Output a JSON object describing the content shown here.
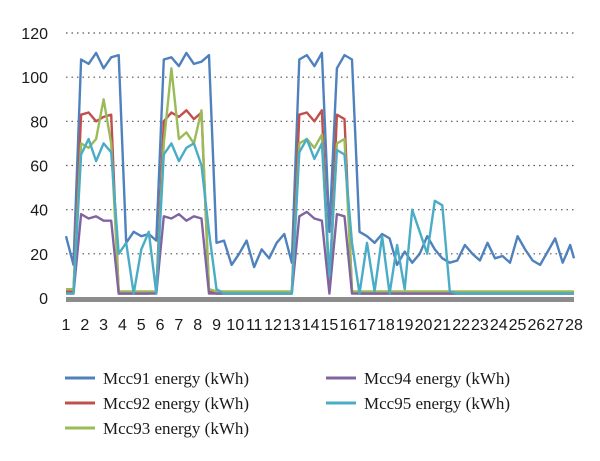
{
  "chart_data": {
    "type": "line",
    "title": "",
    "xlabel": "",
    "ylabel": "",
    "ylim": [
      0,
      120
    ],
    "yticks": [
      "0",
      "20",
      "40",
      "60",
      "80",
      "100",
      "120"
    ],
    "xlim": [
      1,
      28
    ],
    "xtick_labels": [
      "1",
      "2",
      "3",
      "4",
      "5",
      "6",
      "7",
      "8",
      "9",
      "10",
      "11",
      "12",
      "13",
      "14",
      "15",
      "16",
      "17",
      "18",
      "19",
      "20",
      "21",
      "22",
      "23",
      "24",
      "25",
      "26",
      "27",
      "28"
    ],
    "grid": "horizontal dotted",
    "legend_position": "bottom",
    "x": [
      1.0,
      1.4,
      1.8,
      2.2,
      2.6,
      3.0,
      3.4,
      3.8,
      4.2,
      4.6,
      5.0,
      5.4,
      5.8,
      6.2,
      6.6,
      7.0,
      7.4,
      7.8,
      8.2,
      8.6,
      9.0,
      9.4,
      9.8,
      10.2,
      10.6,
      11.0,
      11.4,
      11.8,
      12.2,
      12.6,
      13.0,
      13.4,
      13.8,
      14.2,
      14.6,
      15.0,
      15.4,
      15.8,
      16.2,
      16.6,
      17.0,
      17.4,
      17.8,
      18.2,
      18.6,
      19.0,
      19.4,
      19.8,
      20.2,
      20.6,
      21.0,
      21.4,
      21.8,
      22.2,
      22.6,
      23.0,
      23.4,
      23.8,
      24.2,
      24.6,
      25.0,
      25.4,
      25.8,
      26.2,
      26.6,
      27.0,
      27.4,
      27.8,
      28.0
    ],
    "series": [
      {
        "name": "Mcc91 energy (kWh)",
        "color": "#4f81bd",
        "values": [
          28,
          15,
          108,
          106,
          111,
          104,
          109,
          110,
          25,
          30,
          28,
          29,
          26,
          108,
          109,
          105,
          111,
          106,
          107,
          110,
          25,
          26,
          15,
          20,
          26,
          14,
          22,
          18,
          25,
          29,
          16,
          108,
          110,
          105,
          111,
          30,
          104,
          110,
          108,
          30,
          28,
          25,
          29,
          27,
          15,
          21,
          16,
          20,
          28,
          22,
          18,
          16,
          17,
          24,
          20,
          17,
          25,
          18,
          19,
          16,
          28,
          22,
          17,
          15,
          21,
          27,
          16,
          24,
          18
        ]
      },
      {
        "name": "Mcc92 energy (kWh)",
        "color": "#c0504d",
        "values": [
          3,
          3,
          83,
          84,
          80,
          82,
          83,
          2,
          2,
          2,
          2,
          2,
          3,
          80,
          84,
          82,
          85,
          81,
          84,
          3,
          2,
          2,
          2,
          2,
          2,
          2,
          2,
          2,
          2,
          2,
          2,
          83,
          84,
          80,
          85,
          3,
          83,
          81,
          3,
          2,
          2,
          2,
          2,
          2,
          2,
          2,
          2,
          2,
          2,
          2,
          2,
          2,
          2,
          2,
          2,
          2,
          2,
          2,
          2,
          2,
          2,
          2,
          2,
          2,
          2,
          2,
          2,
          2,
          2
        ]
      },
      {
        "name": "Mcc93 energy (kWh)",
        "color": "#9bbb59",
        "values": [
          4,
          4,
          70,
          68,
          72,
          90,
          70,
          3,
          3,
          3,
          3,
          3,
          3,
          70,
          104,
          72,
          75,
          70,
          85,
          4,
          3,
          3,
          3,
          3,
          3,
          3,
          3,
          3,
          3,
          3,
          3,
          70,
          72,
          68,
          74,
          4,
          70,
          72,
          3,
          3,
          3,
          3,
          3,
          3,
          3,
          3,
          3,
          3,
          3,
          3,
          3,
          3,
          3,
          3,
          3,
          3,
          3,
          3,
          3,
          3,
          3,
          3,
          3,
          3,
          3,
          3,
          3,
          3,
          3
        ]
      },
      {
        "name": "Mcc94 energy (kWh)",
        "color": "#8064a2",
        "values": [
          2,
          2,
          38,
          36,
          37,
          35,
          35,
          2,
          2,
          2,
          2,
          2,
          2,
          37,
          36,
          38,
          35,
          37,
          36,
          2,
          2,
          2,
          2,
          2,
          2,
          2,
          2,
          2,
          2,
          2,
          2,
          37,
          39,
          36,
          35,
          2,
          38,
          37,
          2,
          2,
          2,
          2,
          2,
          2,
          2,
          2,
          2,
          2,
          2,
          2,
          2,
          2,
          2,
          2,
          2,
          2,
          2,
          2,
          2,
          2,
          2,
          2,
          2,
          2,
          2,
          2,
          2,
          2,
          2
        ]
      },
      {
        "name": "Mcc95 energy (kWh)",
        "color": "#4bacc6",
        "values": [
          2,
          2,
          65,
          72,
          62,
          70,
          66,
          20,
          25,
          2,
          22,
          30,
          2,
          65,
          70,
          62,
          68,
          70,
          60,
          30,
          4,
          2,
          2,
          2,
          2,
          2,
          2,
          2,
          2,
          2,
          2,
          66,
          72,
          63,
          70,
          10,
          67,
          65,
          25,
          2,
          25,
          3,
          28,
          2,
          24,
          4,
          40,
          30,
          20,
          44,
          42,
          3,
          2,
          2,
          2,
          2,
          2,
          2,
          2,
          2,
          2,
          2,
          2,
          2,
          2,
          2,
          2,
          2,
          2
        ]
      }
    ]
  }
}
